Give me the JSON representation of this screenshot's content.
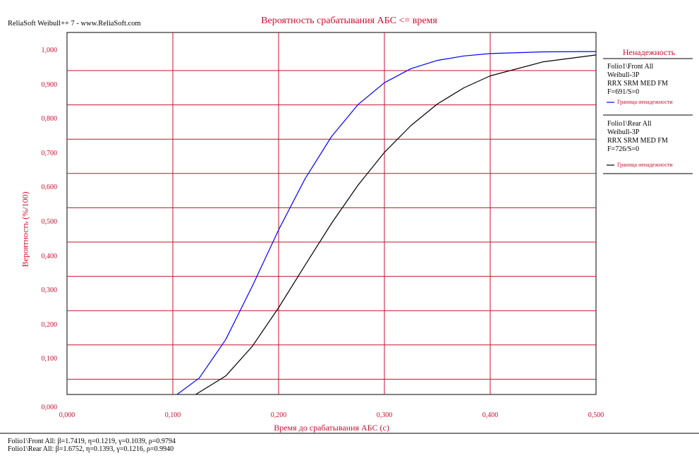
{
  "header": {
    "source": "ReliaSoft Weibull++ 7 - www.ReliaSoft.com"
  },
  "chart_data": {
    "type": "line",
    "title": "Вероятность срабатывания АБС <= время",
    "xlabel": "Время до срабатывания АБС (с)",
    "ylabel": "Вероятность (%/100)",
    "xlim": [
      0,
      0.5
    ],
    "ylim": [
      0,
      1
    ],
    "x_ticks": [
      "0,000",
      "0,100",
      "0,200",
      "0,300",
      "0,400",
      "0,500"
    ],
    "y_ticks": [
      "0,000",
      "0,100",
      "0,200",
      "0,300",
      "0,400",
      "0,500",
      "0,600",
      "0,700",
      "0,800",
      "0,900",
      "1,000"
    ],
    "grid": true,
    "legend_placement": "right",
    "series": [
      {
        "name": "Folio1\\Front All",
        "color": "#0000ff",
        "distribution": "Weibull-3P",
        "beta": 1.7419,
        "eta": 0.1219,
        "gamma": 0.1039,
        "x": [
          0.1039,
          0.125,
          0.15,
          0.175,
          0.2,
          0.225,
          0.25,
          0.275,
          0.3,
          0.325,
          0.35,
          0.375,
          0.4,
          0.45,
          0.5
        ],
        "y": [
          0.0,
          0.048,
          0.16,
          0.315,
          0.48,
          0.629,
          0.752,
          0.845,
          0.909,
          0.95,
          0.974,
          0.987,
          0.994,
          0.999,
          1.0
        ]
      },
      {
        "name": "Folio1\\Rear All",
        "color": "#000000",
        "distribution": "Weibull-3P",
        "beta": 1.6752,
        "eta": 0.1393,
        "gamma": 0.1216,
        "x": [
          0.1216,
          0.15,
          0.175,
          0.2,
          0.225,
          0.25,
          0.275,
          0.3,
          0.325,
          0.35,
          0.375,
          0.4,
          0.45,
          0.5
        ],
        "y": [
          0.0,
          0.054,
          0.14,
          0.253,
          0.377,
          0.499,
          0.61,
          0.706,
          0.784,
          0.847,
          0.894,
          0.929,
          0.97,
          0.99
        ]
      }
    ]
  },
  "legend": {
    "title": "Ненадежность",
    "groups": [
      {
        "lines": [
          "Folio1\\Front All",
          "Weibull-3P",
          "RRX SRM MED FM",
          "F=691/S=0"
        ],
        "key_label": "Граница ненадежности",
        "color": "#0000ff"
      },
      {
        "lines": [
          "Folio1\\Rear All",
          "Weibull-3P",
          "RRX SRM MED FM",
          "F=726/S=0"
        ],
        "key_label": "Граница ненадежности",
        "color": "#000000"
      }
    ]
  },
  "footer": {
    "lines": [
      "Folio1\\Front All:    β=1.7419, η=0.1219, γ=0.1039, ρ=0.9794",
      "Folio1\\Rear All:    β=1.6752, η=0.1393, γ=0.1216, ρ=0.9940"
    ]
  }
}
